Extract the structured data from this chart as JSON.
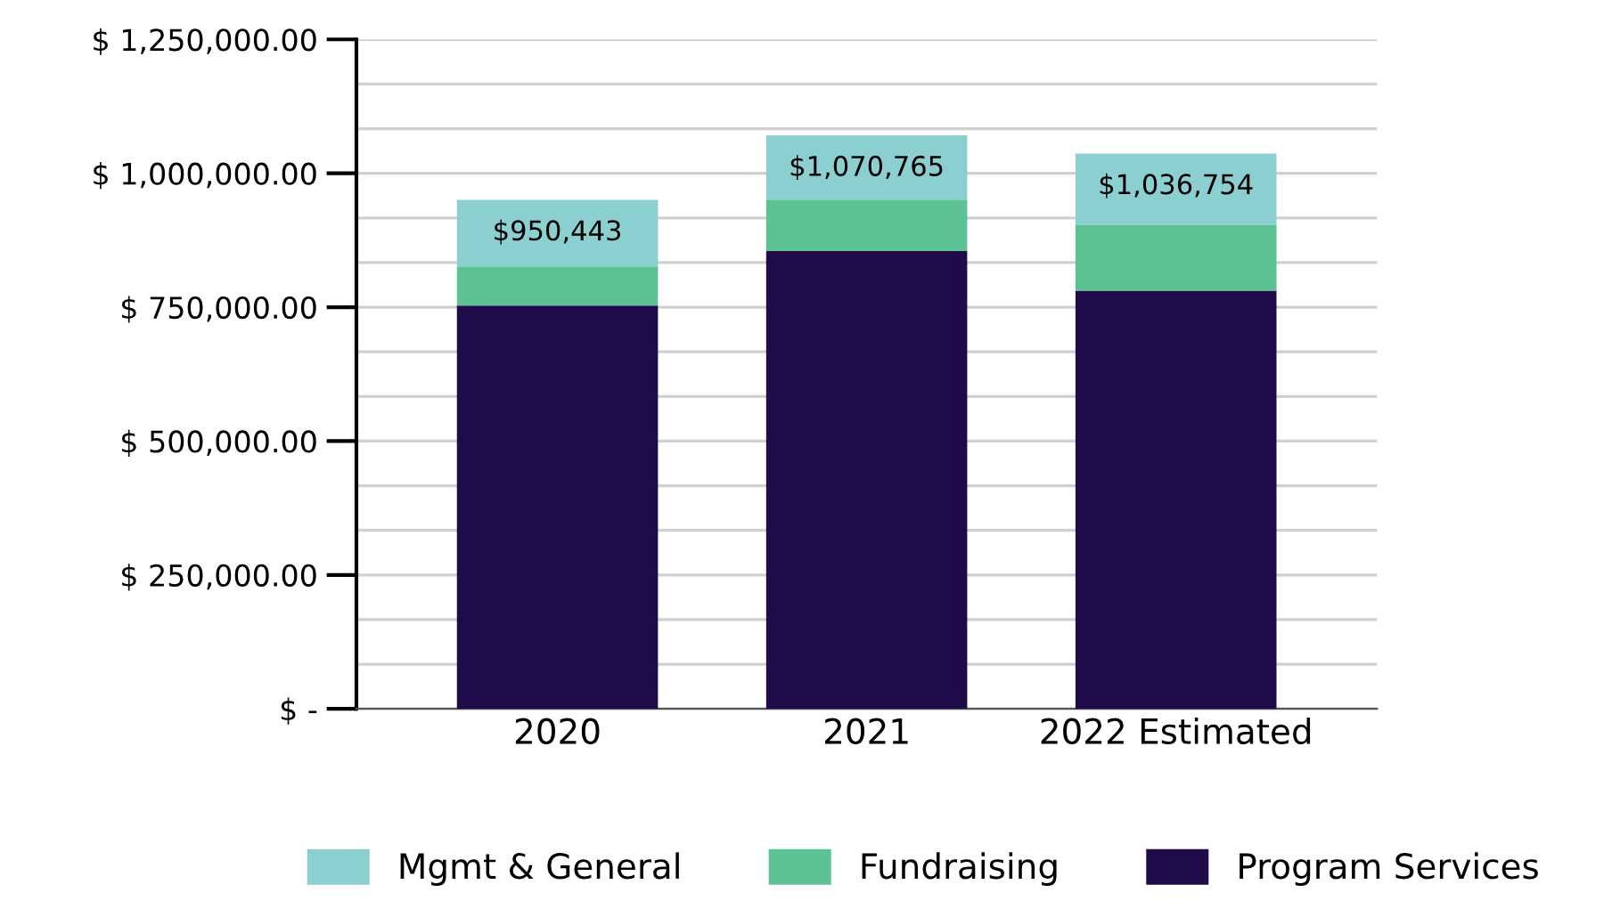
{
  "chart_data": {
    "type": "bar",
    "stacked": true,
    "categories": [
      "2020",
      "2021",
      "2022 Estimated"
    ],
    "series": [
      {
        "name": "Program Services",
        "color": "#1f0a4a",
        "values": [
          753000,
          855000,
          781000
        ]
      },
      {
        "name": "Fundraising",
        "color": "#5cc193",
        "values": [
          73000,
          96000,
          122000
        ]
      },
      {
        "name": "Mgmt & General",
        "color": "#8ccfd0",
        "values": [
          124443,
          119765,
          133754
        ]
      }
    ],
    "totals": [
      "$950,443",
      "$1,070,765",
      "$1,036,754"
    ],
    "ylim": [
      0,
      1250000
    ],
    "yticks": [
      {
        "value": 0,
        "label": "$ -"
      },
      {
        "value": 83333,
        "label": null
      },
      {
        "value": 166667,
        "label": null
      },
      {
        "value": 250000,
        "label": "$ 250,000.00"
      },
      {
        "value": 333333,
        "label": null
      },
      {
        "value": 416667,
        "label": null
      },
      {
        "value": 500000,
        "label": "$ 500,000.00"
      },
      {
        "value": 583333,
        "label": null
      },
      {
        "value": 666667,
        "label": null
      },
      {
        "value": 750000,
        "label": "$ 750,000.00"
      },
      {
        "value": 833333,
        "label": null
      },
      {
        "value": 916667,
        "label": null
      },
      {
        "value": 1000000,
        "label": "$ 1,000,000.00"
      },
      {
        "value": 1083333,
        "label": null
      },
      {
        "value": 1166667,
        "label": null
      },
      {
        "value": 1250000,
        "label": "$ 1,250,000.00"
      }
    ],
    "grid": "y",
    "legend": "bottom"
  }
}
